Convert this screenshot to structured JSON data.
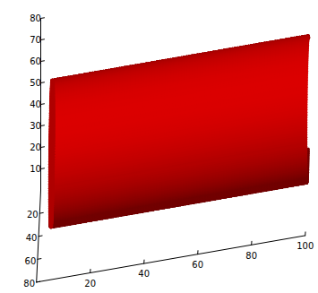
{
  "chart_data": {
    "type": "surface",
    "color": "#e00000",
    "xlim": [
      0,
      100
    ],
    "ylim": [
      0,
      80
    ],
    "zlim": [
      0,
      80
    ],
    "xticks": [
      20,
      40,
      60,
      80,
      100
    ],
    "yticks": [
      20,
      40,
      60,
      80
    ],
    "zticks": [
      10,
      20,
      30,
      40,
      50,
      60,
      70,
      80
    ],
    "surface": {
      "x_range": [
        5,
        100
      ],
      "center_y": 45,
      "center_z": 40,
      "radius_y": 30,
      "radius_z": 30
    }
  }
}
